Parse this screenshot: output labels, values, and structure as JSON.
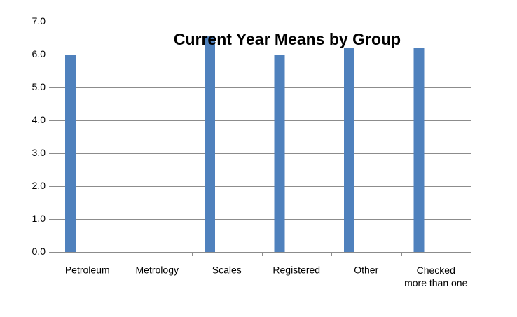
{
  "chart_data": {
    "type": "bar",
    "title": "Current Year Means by Group",
    "categories": [
      "Petroleum",
      "Metrology",
      "Scales",
      "Registered",
      "Other",
      "Checked\nmore than one"
    ],
    "values": [
      6.0,
      null,
      6.55,
      6.0,
      6.2,
      6.2
    ],
    "color": "#4f81bd",
    "ylim": [
      0,
      7
    ],
    "yticks": [
      {
        "value": 0,
        "label": "0.0"
      },
      {
        "value": 1,
        "label": "1.0"
      },
      {
        "value": 2,
        "label": "2.0"
      },
      {
        "value": 3,
        "label": "3.0"
      },
      {
        "value": 4,
        "label": "4.0"
      },
      {
        "value": 5,
        "label": "5.0"
      },
      {
        "value": 6,
        "label": "6.0"
      },
      {
        "value": 7,
        "label": "7.0"
      }
    ],
    "grid": true
  }
}
